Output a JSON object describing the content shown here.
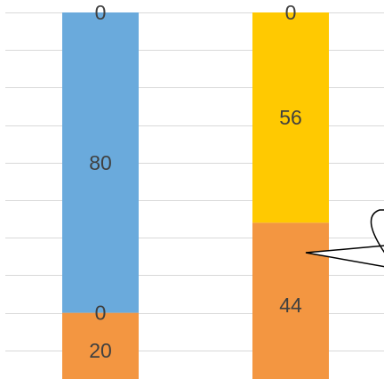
{
  "chart_data": {
    "type": "bar",
    "stacked": true,
    "grid": true,
    "categories": [
      "",
      ""
    ],
    "series": [
      {
        "color": "#F39641",
        "values": [
          20,
          44
        ],
        "labels": [
          "20",
          "44"
        ]
      },
      {
        "color": "#F39641",
        "values": [
          0,
          0
        ],
        "labels": [
          "0",
          ""
        ]
      },
      {
        "color": "#6AAADC",
        "values": [
          80,
          0
        ],
        "labels": [
          "80",
          ""
        ]
      },
      {
        "color": "#FFC901",
        "values": [
          0,
          56
        ],
        "labels": [
          "",
          "56"
        ]
      },
      {
        "color": "#6AAADC",
        "values": [
          0,
          0
        ],
        "labels": [
          "0",
          "0"
        ]
      }
    ],
    "ylim": [
      0,
      100
    ]
  }
}
